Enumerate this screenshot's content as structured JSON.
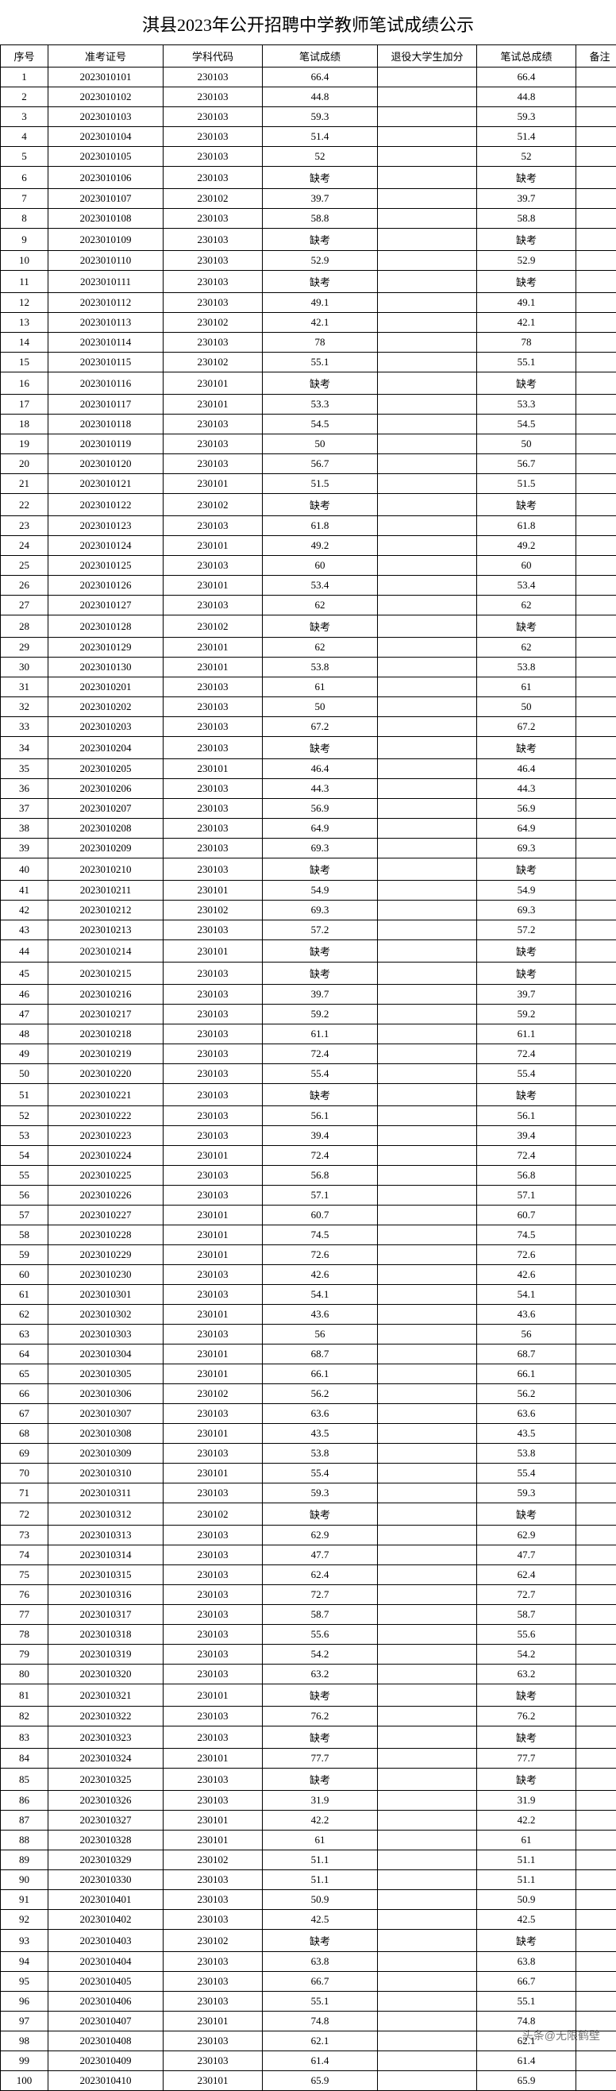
{
  "title": "淇县2023年公开招聘中学教师笔试成绩公示",
  "columns": [
    "序号",
    "准考证号",
    "学科代码",
    "笔试成绩",
    "退役大学生加分",
    "笔试总成绩",
    "备注"
  ],
  "watermark": "头条@无限鹤壁",
  "rows": [
    {
      "seq": "1",
      "id": "2023010101",
      "sub": "230103",
      "score": "66.4",
      "bonus": "",
      "total": "66.4",
      "note": ""
    },
    {
      "seq": "2",
      "id": "2023010102",
      "sub": "230103",
      "score": "44.8",
      "bonus": "",
      "total": "44.8",
      "note": ""
    },
    {
      "seq": "3",
      "id": "2023010103",
      "sub": "230103",
      "score": "59.3",
      "bonus": "",
      "total": "59.3",
      "note": ""
    },
    {
      "seq": "4",
      "id": "2023010104",
      "sub": "230103",
      "score": "51.4",
      "bonus": "",
      "total": "51.4",
      "note": ""
    },
    {
      "seq": "5",
      "id": "2023010105",
      "sub": "230103",
      "score": "52",
      "bonus": "",
      "total": "52",
      "note": ""
    },
    {
      "seq": "6",
      "id": "2023010106",
      "sub": "230103",
      "score": "缺考",
      "bonus": "",
      "total": "缺考",
      "note": ""
    },
    {
      "seq": "7",
      "id": "2023010107",
      "sub": "230102",
      "score": "39.7",
      "bonus": "",
      "total": "39.7",
      "note": ""
    },
    {
      "seq": "8",
      "id": "2023010108",
      "sub": "230103",
      "score": "58.8",
      "bonus": "",
      "total": "58.8",
      "note": ""
    },
    {
      "seq": "9",
      "id": "2023010109",
      "sub": "230103",
      "score": "缺考",
      "bonus": "",
      "total": "缺考",
      "note": ""
    },
    {
      "seq": "10",
      "id": "2023010110",
      "sub": "230103",
      "score": "52.9",
      "bonus": "",
      "total": "52.9",
      "note": ""
    },
    {
      "seq": "11",
      "id": "2023010111",
      "sub": "230103",
      "score": "缺考",
      "bonus": "",
      "total": "缺考",
      "note": ""
    },
    {
      "seq": "12",
      "id": "2023010112",
      "sub": "230103",
      "score": "49.1",
      "bonus": "",
      "total": "49.1",
      "note": ""
    },
    {
      "seq": "13",
      "id": "2023010113",
      "sub": "230102",
      "score": "42.1",
      "bonus": "",
      "total": "42.1",
      "note": ""
    },
    {
      "seq": "14",
      "id": "2023010114",
      "sub": "230103",
      "score": "78",
      "bonus": "",
      "total": "78",
      "note": ""
    },
    {
      "seq": "15",
      "id": "2023010115",
      "sub": "230102",
      "score": "55.1",
      "bonus": "",
      "total": "55.1",
      "note": ""
    },
    {
      "seq": "16",
      "id": "2023010116",
      "sub": "230101",
      "score": "缺考",
      "bonus": "",
      "total": "缺考",
      "note": ""
    },
    {
      "seq": "17",
      "id": "2023010117",
      "sub": "230101",
      "score": "53.3",
      "bonus": "",
      "total": "53.3",
      "note": ""
    },
    {
      "seq": "18",
      "id": "2023010118",
      "sub": "230103",
      "score": "54.5",
      "bonus": "",
      "total": "54.5",
      "note": ""
    },
    {
      "seq": "19",
      "id": "2023010119",
      "sub": "230103",
      "score": "50",
      "bonus": "",
      "total": "50",
      "note": ""
    },
    {
      "seq": "20",
      "id": "2023010120",
      "sub": "230103",
      "score": "56.7",
      "bonus": "",
      "total": "56.7",
      "note": ""
    },
    {
      "seq": "21",
      "id": "2023010121",
      "sub": "230101",
      "score": "51.5",
      "bonus": "",
      "total": "51.5",
      "note": ""
    },
    {
      "seq": "22",
      "id": "2023010122",
      "sub": "230102",
      "score": "缺考",
      "bonus": "",
      "total": "缺考",
      "note": ""
    },
    {
      "seq": "23",
      "id": "2023010123",
      "sub": "230103",
      "score": "61.8",
      "bonus": "",
      "total": "61.8",
      "note": ""
    },
    {
      "seq": "24",
      "id": "2023010124",
      "sub": "230101",
      "score": "49.2",
      "bonus": "",
      "total": "49.2",
      "note": ""
    },
    {
      "seq": "25",
      "id": "2023010125",
      "sub": "230103",
      "score": "60",
      "bonus": "",
      "total": "60",
      "note": ""
    },
    {
      "seq": "26",
      "id": "2023010126",
      "sub": "230101",
      "score": "53.4",
      "bonus": "",
      "total": "53.4",
      "note": ""
    },
    {
      "seq": "27",
      "id": "2023010127",
      "sub": "230103",
      "score": "62",
      "bonus": "",
      "total": "62",
      "note": ""
    },
    {
      "seq": "28",
      "id": "2023010128",
      "sub": "230102",
      "score": "缺考",
      "bonus": "",
      "total": "缺考",
      "note": ""
    },
    {
      "seq": "29",
      "id": "2023010129",
      "sub": "230101",
      "score": "62",
      "bonus": "",
      "total": "62",
      "note": ""
    },
    {
      "seq": "30",
      "id": "2023010130",
      "sub": "230101",
      "score": "53.8",
      "bonus": "",
      "total": "53.8",
      "note": ""
    },
    {
      "seq": "31",
      "id": "2023010201",
      "sub": "230103",
      "score": "61",
      "bonus": "",
      "total": "61",
      "note": ""
    },
    {
      "seq": "32",
      "id": "2023010202",
      "sub": "230103",
      "score": "50",
      "bonus": "",
      "total": "50",
      "note": ""
    },
    {
      "seq": "33",
      "id": "2023010203",
      "sub": "230103",
      "score": "67.2",
      "bonus": "",
      "total": "67.2",
      "note": ""
    },
    {
      "seq": "34",
      "id": "2023010204",
      "sub": "230103",
      "score": "缺考",
      "bonus": "",
      "total": "缺考",
      "note": ""
    },
    {
      "seq": "35",
      "id": "2023010205",
      "sub": "230101",
      "score": "46.4",
      "bonus": "",
      "total": "46.4",
      "note": ""
    },
    {
      "seq": "36",
      "id": "2023010206",
      "sub": "230103",
      "score": "44.3",
      "bonus": "",
      "total": "44.3",
      "note": ""
    },
    {
      "seq": "37",
      "id": "2023010207",
      "sub": "230103",
      "score": "56.9",
      "bonus": "",
      "total": "56.9",
      "note": ""
    },
    {
      "seq": "38",
      "id": "2023010208",
      "sub": "230103",
      "score": "64.9",
      "bonus": "",
      "total": "64.9",
      "note": ""
    },
    {
      "seq": "39",
      "id": "2023010209",
      "sub": "230103",
      "score": "69.3",
      "bonus": "",
      "total": "69.3",
      "note": ""
    },
    {
      "seq": "40",
      "id": "2023010210",
      "sub": "230103",
      "score": "缺考",
      "bonus": "",
      "total": "缺考",
      "note": ""
    },
    {
      "seq": "41",
      "id": "2023010211",
      "sub": "230101",
      "score": "54.9",
      "bonus": "",
      "total": "54.9",
      "note": ""
    },
    {
      "seq": "42",
      "id": "2023010212",
      "sub": "230102",
      "score": "69.3",
      "bonus": "",
      "total": "69.3",
      "note": ""
    },
    {
      "seq": "43",
      "id": "2023010213",
      "sub": "230103",
      "score": "57.2",
      "bonus": "",
      "total": "57.2",
      "note": ""
    },
    {
      "seq": "44",
      "id": "2023010214",
      "sub": "230101",
      "score": "缺考",
      "bonus": "",
      "total": "缺考",
      "note": ""
    },
    {
      "seq": "45",
      "id": "2023010215",
      "sub": "230103",
      "score": "缺考",
      "bonus": "",
      "total": "缺考",
      "note": ""
    },
    {
      "seq": "46",
      "id": "2023010216",
      "sub": "230103",
      "score": "39.7",
      "bonus": "",
      "total": "39.7",
      "note": ""
    },
    {
      "seq": "47",
      "id": "2023010217",
      "sub": "230103",
      "score": "59.2",
      "bonus": "",
      "total": "59.2",
      "note": ""
    },
    {
      "seq": "48",
      "id": "2023010218",
      "sub": "230103",
      "score": "61.1",
      "bonus": "",
      "total": "61.1",
      "note": ""
    },
    {
      "seq": "49",
      "id": "2023010219",
      "sub": "230103",
      "score": "72.4",
      "bonus": "",
      "total": "72.4",
      "note": ""
    },
    {
      "seq": "50",
      "id": "2023010220",
      "sub": "230103",
      "score": "55.4",
      "bonus": "",
      "total": "55.4",
      "note": ""
    },
    {
      "seq": "51",
      "id": "2023010221",
      "sub": "230103",
      "score": "缺考",
      "bonus": "",
      "total": "缺考",
      "note": ""
    },
    {
      "seq": "52",
      "id": "2023010222",
      "sub": "230103",
      "score": "56.1",
      "bonus": "",
      "total": "56.1",
      "note": ""
    },
    {
      "seq": "53",
      "id": "2023010223",
      "sub": "230103",
      "score": "39.4",
      "bonus": "",
      "total": "39.4",
      "note": ""
    },
    {
      "seq": "54",
      "id": "2023010224",
      "sub": "230101",
      "score": "72.4",
      "bonus": "",
      "total": "72.4",
      "note": ""
    },
    {
      "seq": "55",
      "id": "2023010225",
      "sub": "230103",
      "score": "56.8",
      "bonus": "",
      "total": "56.8",
      "note": ""
    },
    {
      "seq": "56",
      "id": "2023010226",
      "sub": "230103",
      "score": "57.1",
      "bonus": "",
      "total": "57.1",
      "note": ""
    },
    {
      "seq": "57",
      "id": "2023010227",
      "sub": "230101",
      "score": "60.7",
      "bonus": "",
      "total": "60.7",
      "note": ""
    },
    {
      "seq": "58",
      "id": "2023010228",
      "sub": "230101",
      "score": "74.5",
      "bonus": "",
      "total": "74.5",
      "note": ""
    },
    {
      "seq": "59",
      "id": "2023010229",
      "sub": "230101",
      "score": "72.6",
      "bonus": "",
      "total": "72.6",
      "note": ""
    },
    {
      "seq": "60",
      "id": "2023010230",
      "sub": "230103",
      "score": "42.6",
      "bonus": "",
      "total": "42.6",
      "note": ""
    },
    {
      "seq": "61",
      "id": "2023010301",
      "sub": "230103",
      "score": "54.1",
      "bonus": "",
      "total": "54.1",
      "note": ""
    },
    {
      "seq": "62",
      "id": "2023010302",
      "sub": "230101",
      "score": "43.6",
      "bonus": "",
      "total": "43.6",
      "note": ""
    },
    {
      "seq": "63",
      "id": "2023010303",
      "sub": "230103",
      "score": "56",
      "bonus": "",
      "total": "56",
      "note": ""
    },
    {
      "seq": "64",
      "id": "2023010304",
      "sub": "230101",
      "score": "68.7",
      "bonus": "",
      "total": "68.7",
      "note": ""
    },
    {
      "seq": "65",
      "id": "2023010305",
      "sub": "230101",
      "score": "66.1",
      "bonus": "",
      "total": "66.1",
      "note": ""
    },
    {
      "seq": "66",
      "id": "2023010306",
      "sub": "230102",
      "score": "56.2",
      "bonus": "",
      "total": "56.2",
      "note": ""
    },
    {
      "seq": "67",
      "id": "2023010307",
      "sub": "230103",
      "score": "63.6",
      "bonus": "",
      "total": "63.6",
      "note": ""
    },
    {
      "seq": "68",
      "id": "2023010308",
      "sub": "230101",
      "score": "43.5",
      "bonus": "",
      "total": "43.5",
      "note": ""
    },
    {
      "seq": "69",
      "id": "2023010309",
      "sub": "230103",
      "score": "53.8",
      "bonus": "",
      "total": "53.8",
      "note": ""
    },
    {
      "seq": "70",
      "id": "2023010310",
      "sub": "230101",
      "score": "55.4",
      "bonus": "",
      "total": "55.4",
      "note": ""
    },
    {
      "seq": "71",
      "id": "2023010311",
      "sub": "230103",
      "score": "59.3",
      "bonus": "",
      "total": "59.3",
      "note": ""
    },
    {
      "seq": "72",
      "id": "2023010312",
      "sub": "230102",
      "score": "缺考",
      "bonus": "",
      "total": "缺考",
      "note": ""
    },
    {
      "seq": "73",
      "id": "2023010313",
      "sub": "230103",
      "score": "62.9",
      "bonus": "",
      "total": "62.9",
      "note": ""
    },
    {
      "seq": "74",
      "id": "2023010314",
      "sub": "230103",
      "score": "47.7",
      "bonus": "",
      "total": "47.7",
      "note": ""
    },
    {
      "seq": "75",
      "id": "2023010315",
      "sub": "230103",
      "score": "62.4",
      "bonus": "",
      "total": "62.4",
      "note": ""
    },
    {
      "seq": "76",
      "id": "2023010316",
      "sub": "230103",
      "score": "72.7",
      "bonus": "",
      "total": "72.7",
      "note": ""
    },
    {
      "seq": "77",
      "id": "2023010317",
      "sub": "230103",
      "score": "58.7",
      "bonus": "",
      "total": "58.7",
      "note": ""
    },
    {
      "seq": "78",
      "id": "2023010318",
      "sub": "230103",
      "score": "55.6",
      "bonus": "",
      "total": "55.6",
      "note": ""
    },
    {
      "seq": "79",
      "id": "2023010319",
      "sub": "230103",
      "score": "54.2",
      "bonus": "",
      "total": "54.2",
      "note": ""
    },
    {
      "seq": "80",
      "id": "2023010320",
      "sub": "230103",
      "score": "63.2",
      "bonus": "",
      "total": "63.2",
      "note": ""
    },
    {
      "seq": "81",
      "id": "2023010321",
      "sub": "230101",
      "score": "缺考",
      "bonus": "",
      "total": "缺考",
      "note": ""
    },
    {
      "seq": "82",
      "id": "2023010322",
      "sub": "230103",
      "score": "76.2",
      "bonus": "",
      "total": "76.2",
      "note": ""
    },
    {
      "seq": "83",
      "id": "2023010323",
      "sub": "230103",
      "score": "缺考",
      "bonus": "",
      "total": "缺考",
      "note": ""
    },
    {
      "seq": "84",
      "id": "2023010324",
      "sub": "230101",
      "score": "77.7",
      "bonus": "",
      "total": "77.7",
      "note": ""
    },
    {
      "seq": "85",
      "id": "2023010325",
      "sub": "230103",
      "score": "缺考",
      "bonus": "",
      "total": "缺考",
      "note": ""
    },
    {
      "seq": "86",
      "id": "2023010326",
      "sub": "230103",
      "score": "31.9",
      "bonus": "",
      "total": "31.9",
      "note": ""
    },
    {
      "seq": "87",
      "id": "2023010327",
      "sub": "230101",
      "score": "42.2",
      "bonus": "",
      "total": "42.2",
      "note": ""
    },
    {
      "seq": "88",
      "id": "2023010328",
      "sub": "230101",
      "score": "61",
      "bonus": "",
      "total": "61",
      "note": ""
    },
    {
      "seq": "89",
      "id": "2023010329",
      "sub": "230102",
      "score": "51.1",
      "bonus": "",
      "total": "51.1",
      "note": ""
    },
    {
      "seq": "90",
      "id": "2023010330",
      "sub": "230103",
      "score": "51.1",
      "bonus": "",
      "total": "51.1",
      "note": ""
    },
    {
      "seq": "91",
      "id": "2023010401",
      "sub": "230103",
      "score": "50.9",
      "bonus": "",
      "total": "50.9",
      "note": ""
    },
    {
      "seq": "92",
      "id": "2023010402",
      "sub": "230103",
      "score": "42.5",
      "bonus": "",
      "total": "42.5",
      "note": ""
    },
    {
      "seq": "93",
      "id": "2023010403",
      "sub": "230102",
      "score": "缺考",
      "bonus": "",
      "total": "缺考",
      "note": ""
    },
    {
      "seq": "94",
      "id": "2023010404",
      "sub": "230103",
      "score": "63.8",
      "bonus": "",
      "total": "63.8",
      "note": ""
    },
    {
      "seq": "95",
      "id": "2023010405",
      "sub": "230103",
      "score": "66.7",
      "bonus": "",
      "total": "66.7",
      "note": ""
    },
    {
      "seq": "96",
      "id": "2023010406",
      "sub": "230103",
      "score": "55.1",
      "bonus": "",
      "total": "55.1",
      "note": ""
    },
    {
      "seq": "97",
      "id": "2023010407",
      "sub": "230101",
      "score": "74.8",
      "bonus": "",
      "total": "74.8",
      "note": ""
    },
    {
      "seq": "98",
      "id": "2023010408",
      "sub": "230103",
      "score": "62.1",
      "bonus": "",
      "total": "62.1",
      "note": ""
    },
    {
      "seq": "99",
      "id": "2023010409",
      "sub": "230103",
      "score": "61.4",
      "bonus": "",
      "total": "61.4",
      "note": ""
    },
    {
      "seq": "100",
      "id": "2023010410",
      "sub": "230101",
      "score": "65.9",
      "bonus": "",
      "total": "65.9",
      "note": ""
    }
  ]
}
